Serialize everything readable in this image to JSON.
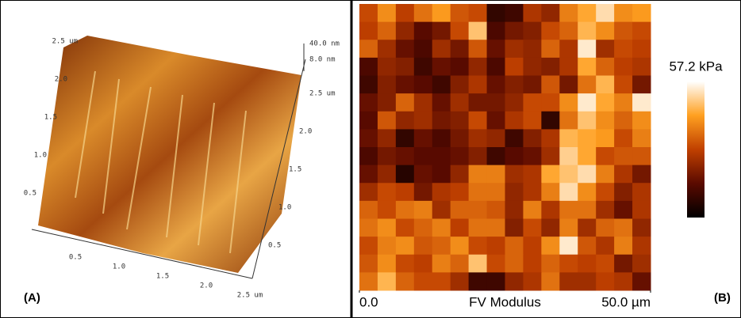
{
  "panel_a": {
    "label": "(A)",
    "z_labels": [
      "40.0 nm",
      "8.0 nm"
    ],
    "left_axis": [
      "2.5 um",
      "2.0",
      "1.5",
      "1.0",
      "0.5"
    ],
    "right_axis": [
      "2.5 um",
      "2.0",
      "1.5",
      "1.0",
      "0.5"
    ],
    "bottom_axis": [
      "0.5",
      "1.0",
      "1.5",
      "2.0",
      "2.5 um"
    ]
  },
  "panel_b_label": "(B)",
  "chart_data": {
    "type": "heatmap",
    "title": "FV Modulus",
    "xlim": [
      0,
      50
    ],
    "xticks": [
      {
        "value": 0,
        "label": "0.0"
      },
      {
        "value": 50,
        "label": "50.0 µm"
      }
    ],
    "zlim": [
      0,
      57.2
    ],
    "zticks": [
      {
        "value": 57.2,
        "label": "57.2 kPa"
      }
    ],
    "values": [
      [
        30,
        40,
        28,
        36,
        42,
        32,
        30,
        8,
        10,
        26,
        22,
        38,
        44,
        52,
        40,
        42
      ],
      [
        28,
        34,
        22,
        14,
        18,
        30,
        48,
        12,
        18,
        20,
        30,
        34,
        46,
        40,
        32,
        30
      ],
      [
        34,
        24,
        16,
        12,
        24,
        18,
        32,
        16,
        24,
        22,
        34,
        26,
        54,
        24,
        30,
        28
      ],
      [
        12,
        22,
        20,
        10,
        16,
        14,
        22,
        12,
        28,
        22,
        20,
        26,
        44,
        34,
        28,
        26
      ],
      [
        10,
        20,
        16,
        14,
        10,
        20,
        26,
        16,
        20,
        18,
        32,
        18,
        36,
        46,
        30,
        18
      ],
      [
        16,
        20,
        34,
        24,
        16,
        24,
        18,
        18,
        22,
        30,
        30,
        40,
        54,
        44,
        38,
        54
      ],
      [
        14,
        32,
        22,
        24,
        18,
        20,
        30,
        16,
        26,
        30,
        8,
        36,
        48,
        40,
        34,
        40
      ],
      [
        16,
        22,
        8,
        16,
        12,
        18,
        24,
        22,
        10,
        20,
        26,
        46,
        44,
        42,
        30,
        38
      ],
      [
        12,
        18,
        16,
        14,
        14,
        16,
        20,
        10,
        14,
        16,
        24,
        50,
        44,
        30,
        32,
        32
      ],
      [
        16,
        22,
        6,
        16,
        14,
        22,
        38,
        38,
        24,
        26,
        44,
        48,
        52,
        38,
        26,
        18
      ],
      [
        24,
        30,
        28,
        18,
        26,
        28,
        36,
        36,
        22,
        26,
        38,
        52,
        40,
        30,
        20,
        26
      ],
      [
        34,
        30,
        36,
        38,
        24,
        34,
        34,
        32,
        22,
        38,
        26,
        36,
        36,
        24,
        16,
        26
      ],
      [
        36,
        40,
        30,
        34,
        38,
        28,
        36,
        36,
        20,
        30,
        22,
        38,
        24,
        34,
        36,
        22
      ],
      [
        30,
        38,
        40,
        32,
        34,
        40,
        30,
        28,
        34,
        28,
        40,
        54,
        32,
        26,
        38,
        26
      ],
      [
        32,
        40,
        30,
        28,
        38,
        34,
        48,
        30,
        34,
        28,
        34,
        30,
        28,
        30,
        18,
        24
      ],
      [
        36,
        46,
        34,
        30,
        30,
        24,
        10,
        10,
        22,
        26,
        36,
        24,
        24,
        28,
        26,
        16
      ]
    ]
  }
}
